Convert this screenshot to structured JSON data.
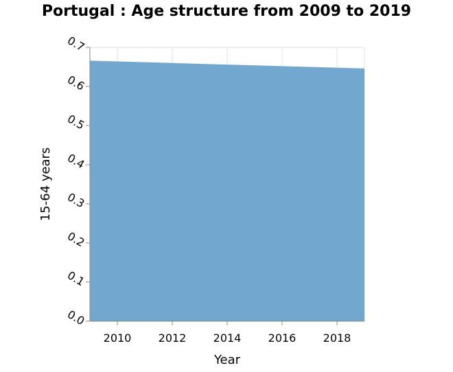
{
  "chart_data": {
    "type": "area",
    "title": "Portugal : Age structure from 2009 to 2019",
    "xlabel": "Year",
    "ylabel": "15-64 years",
    "x": [
      2009,
      2010,
      2011,
      2012,
      2013,
      2014,
      2015,
      2016,
      2017,
      2018,
      2019
    ],
    "values": [
      0.666,
      0.664,
      0.662,
      0.66,
      0.658,
      0.656,
      0.654,
      0.652,
      0.65,
      0.648,
      0.646
    ],
    "xlim": [
      2009,
      2019
    ],
    "ylim": [
      0,
      0.7
    ],
    "x_ticks": [
      "2010",
      "2012",
      "2014",
      "2016",
      "2018"
    ],
    "y_ticks": [
      "0.0",
      "0.1",
      "0.2",
      "0.3",
      "0.4",
      "0.5",
      "0.6",
      "0.7"
    ],
    "grid": true,
    "fill_color": "#72a8d0",
    "grid_color": "#e0e0e0",
    "axis_color": "#888888"
  }
}
